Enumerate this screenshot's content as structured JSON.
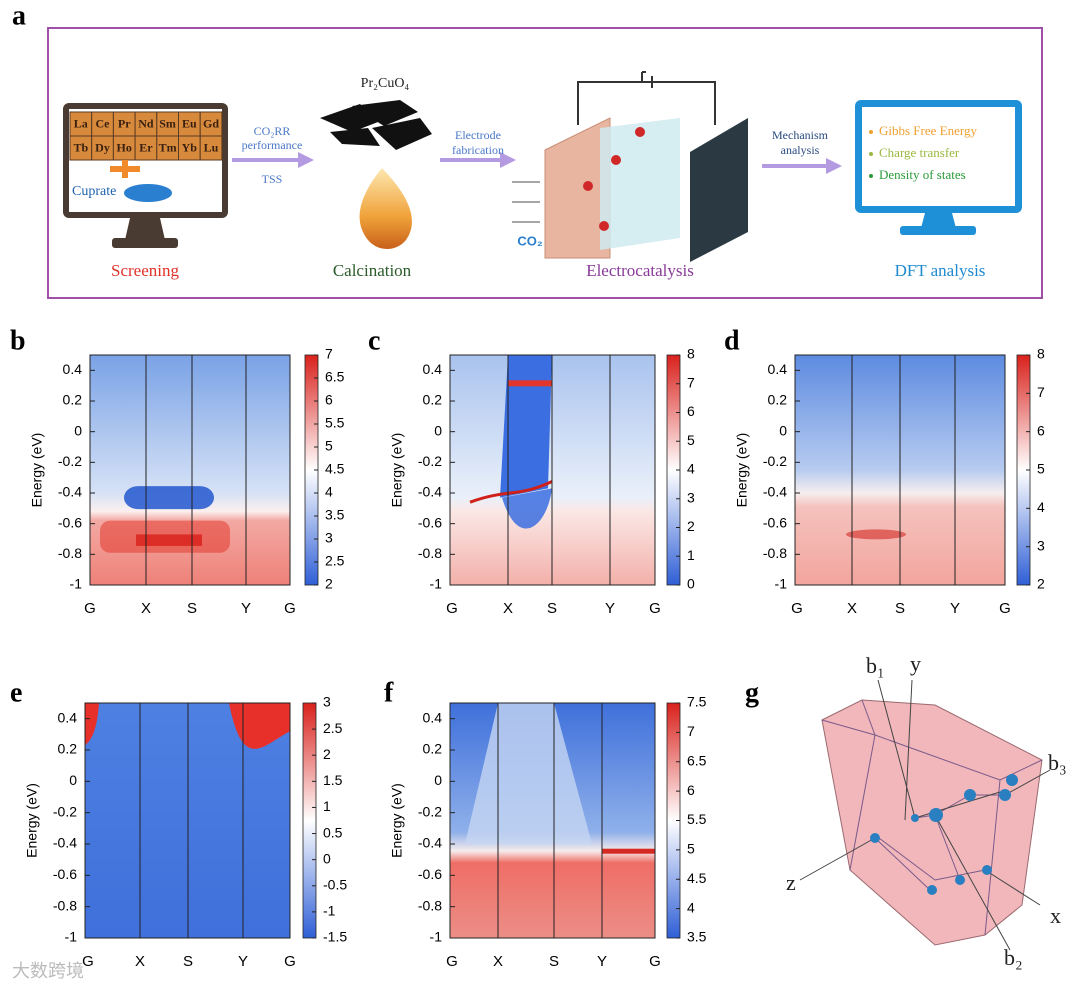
{
  "panel_a": {
    "label": "a",
    "elements": [
      [
        "La",
        "Ce",
        "Pr",
        "Nd",
        "Sm",
        "Eu",
        "Gd"
      ],
      [
        "Tb",
        "Dy",
        "Ho",
        "Er",
        "Tm",
        "Yb",
        "Lu"
      ]
    ],
    "cuprate": "Cuprate",
    "arrow1": [
      "CO₂RR",
      "performance"
    ],
    "arrow1_below": "TSS",
    "compound": "Pr₂CuO₄",
    "arrow2": [
      "Electrode",
      "fabrication"
    ],
    "co2": "CO₂",
    "arrow3": [
      "Mechanism",
      "analysis"
    ],
    "dft_items": [
      "Gibbs Free Energy",
      "Charge transfer",
      "Density of states"
    ],
    "steps": [
      "Screening",
      "Calcination",
      "Electrocatalysis",
      "DFT analysis"
    ]
  },
  "band_panels": [
    {
      "label": "b",
      "ylabel": "Energy (eV)",
      "ylim": [
        -1,
        0.5
      ],
      "yticks": [
        0.4,
        0.2,
        0,
        -0.2,
        -0.4,
        -0.6,
        -0.8,
        -1
      ],
      "xlabels": [
        "G",
        "X",
        "S",
        "Y",
        "G"
      ],
      "clim": [
        2,
        7
      ],
      "cticks": [
        7,
        6.5,
        6,
        5.5,
        5,
        4.5,
        4,
        3.5,
        3,
        2.5,
        2
      ]
    },
    {
      "label": "c",
      "ylabel": "Energy (eV)",
      "ylim": [
        -1,
        0.5
      ],
      "yticks": [
        0.4,
        0.2,
        0,
        -0.2,
        -0.4,
        -0.6,
        -0.8,
        -1
      ],
      "xlabels": [
        "G",
        "X",
        "S",
        "Y",
        "G"
      ],
      "clim": [
        0,
        8
      ],
      "cticks": [
        8,
        7,
        6,
        5,
        4,
        3,
        2,
        1,
        0
      ]
    },
    {
      "label": "d",
      "ylabel": "Energy (eV)",
      "ylim": [
        -1,
        0.5
      ],
      "yticks": [
        0.4,
        0.2,
        0,
        -0.2,
        -0.4,
        -0.6,
        -0.8,
        -1
      ],
      "xlabels": [
        "G",
        "X",
        "S",
        "Y",
        "G"
      ],
      "clim": [
        2,
        8
      ],
      "cticks": [
        8,
        7,
        6,
        5,
        4,
        3,
        2
      ]
    },
    {
      "label": "e",
      "ylabel": "Energy (eV)",
      "ylim": [
        -1,
        0.5
      ],
      "yticks": [
        0.4,
        0.2,
        0,
        -0.2,
        -0.4,
        -0.6,
        -0.8,
        -1
      ],
      "xlabels": [
        "G",
        "X",
        "S",
        "Y",
        "G"
      ],
      "clim": [
        -1.5,
        3
      ],
      "cticks": [
        3,
        2.5,
        2,
        1.5,
        1,
        0.5,
        0,
        -0.5,
        -1,
        -1.5
      ]
    },
    {
      "label": "f",
      "ylabel": "Energy (eV)",
      "ylim": [
        -1,
        0.5
      ],
      "yticks": [
        0.4,
        0.2,
        0,
        -0.2,
        -0.4,
        -0.6,
        -0.8,
        -1
      ],
      "xlabels": [
        "G",
        "X",
        "S",
        "Y",
        "G"
      ],
      "clim": [
        3.5,
        7.5
      ],
      "cticks": [
        7.5,
        7,
        6.5,
        6,
        5.5,
        5,
        4.5,
        4,
        3.5
      ]
    }
  ],
  "panel_g": {
    "label": "g",
    "axes": [
      "b₁",
      "y",
      "b₃",
      "z",
      "x",
      "b₂"
    ]
  },
  "watermark": "大数跨境"
}
